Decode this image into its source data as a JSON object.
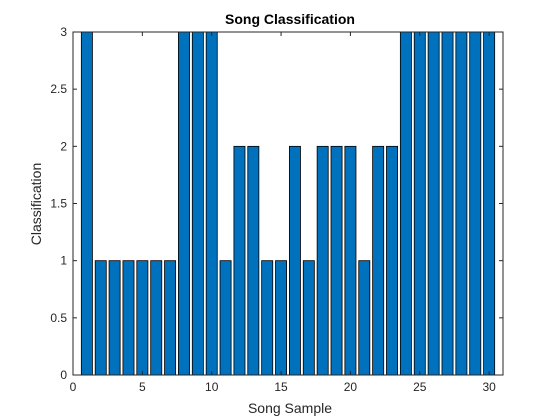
{
  "chart_data": {
    "type": "bar",
    "title": "Song Classification",
    "xlabel": "Song Sample",
    "ylabel": "Classification",
    "x": [
      1,
      2,
      3,
      4,
      5,
      6,
      7,
      8,
      9,
      10,
      11,
      12,
      13,
      14,
      15,
      16,
      17,
      18,
      19,
      20,
      21,
      22,
      23,
      24,
      25,
      26,
      27,
      28,
      29,
      30
    ],
    "values": [
      3,
      1,
      1,
      1,
      1,
      1,
      1,
      3,
      3,
      3,
      1,
      2,
      2,
      1,
      1,
      2,
      1,
      2,
      2,
      2,
      1,
      2,
      2,
      3,
      3,
      3,
      3,
      3,
      3,
      3
    ],
    "xlim": [
      0,
      31
    ],
    "ylim": [
      0,
      3
    ],
    "xticks": [
      0,
      5,
      10,
      15,
      20,
      25,
      30
    ],
    "yticks": [
      0,
      0.5,
      1,
      1.5,
      2,
      2.5,
      3
    ],
    "xtick_labels": [
      "0",
      "5",
      "10",
      "15",
      "20",
      "25",
      "30"
    ],
    "ytick_labels": [
      "0",
      "0.5",
      "1",
      "1.5",
      "2",
      "2.5",
      "3"
    ],
    "grid": false,
    "bar_color": "#0072BD",
    "edge_color": "#000000"
  }
}
